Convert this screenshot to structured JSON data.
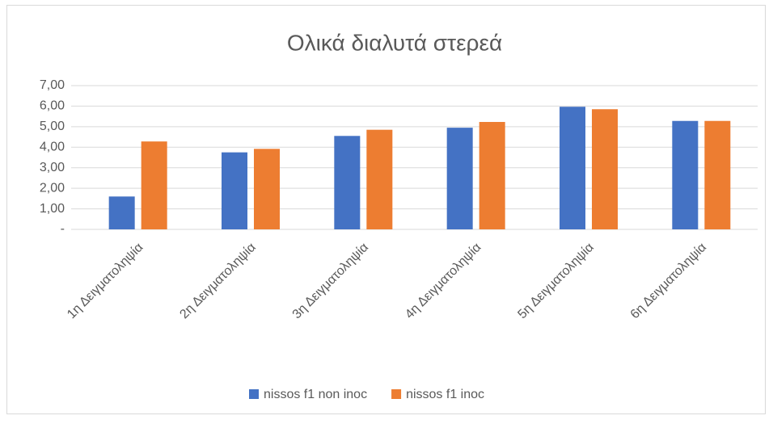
{
  "chart_data": {
    "type": "bar",
    "title": "Ολικά διαλυτά στερεά",
    "categories": [
      "1η Δειγματοληψία",
      "2η Δειγματοληψία",
      "3η Δειγματοληψία",
      "4η Δειγματοληψία",
      "5η Δειγματοληψία",
      "6η Δειγματοληψία"
    ],
    "series": [
      {
        "name": "nissos f1 non inoc",
        "color": "#4472c4",
        "values": [
          1.6,
          3.75,
          4.55,
          4.95,
          5.97,
          5.28
        ]
      },
      {
        "name": "nissos f1 inoc",
        "color": "#ed7d31",
        "values": [
          4.28,
          3.92,
          4.85,
          5.23,
          5.85,
          5.28
        ]
      }
    ],
    "ylim": [
      0,
      7
    ],
    "yticks": [
      {
        "value": 0,
        "label": "-"
      },
      {
        "value": 1,
        "label": "1,00"
      },
      {
        "value": 2,
        "label": "2,00"
      },
      {
        "value": 3,
        "label": "3,00"
      },
      {
        "value": 4,
        "label": "4,00"
      },
      {
        "value": 5,
        "label": "5,00"
      },
      {
        "value": 6,
        "label": "6,00"
      },
      {
        "value": 7,
        "label": "7,00"
      }
    ],
    "grid": true,
    "legend": "bottom"
  }
}
